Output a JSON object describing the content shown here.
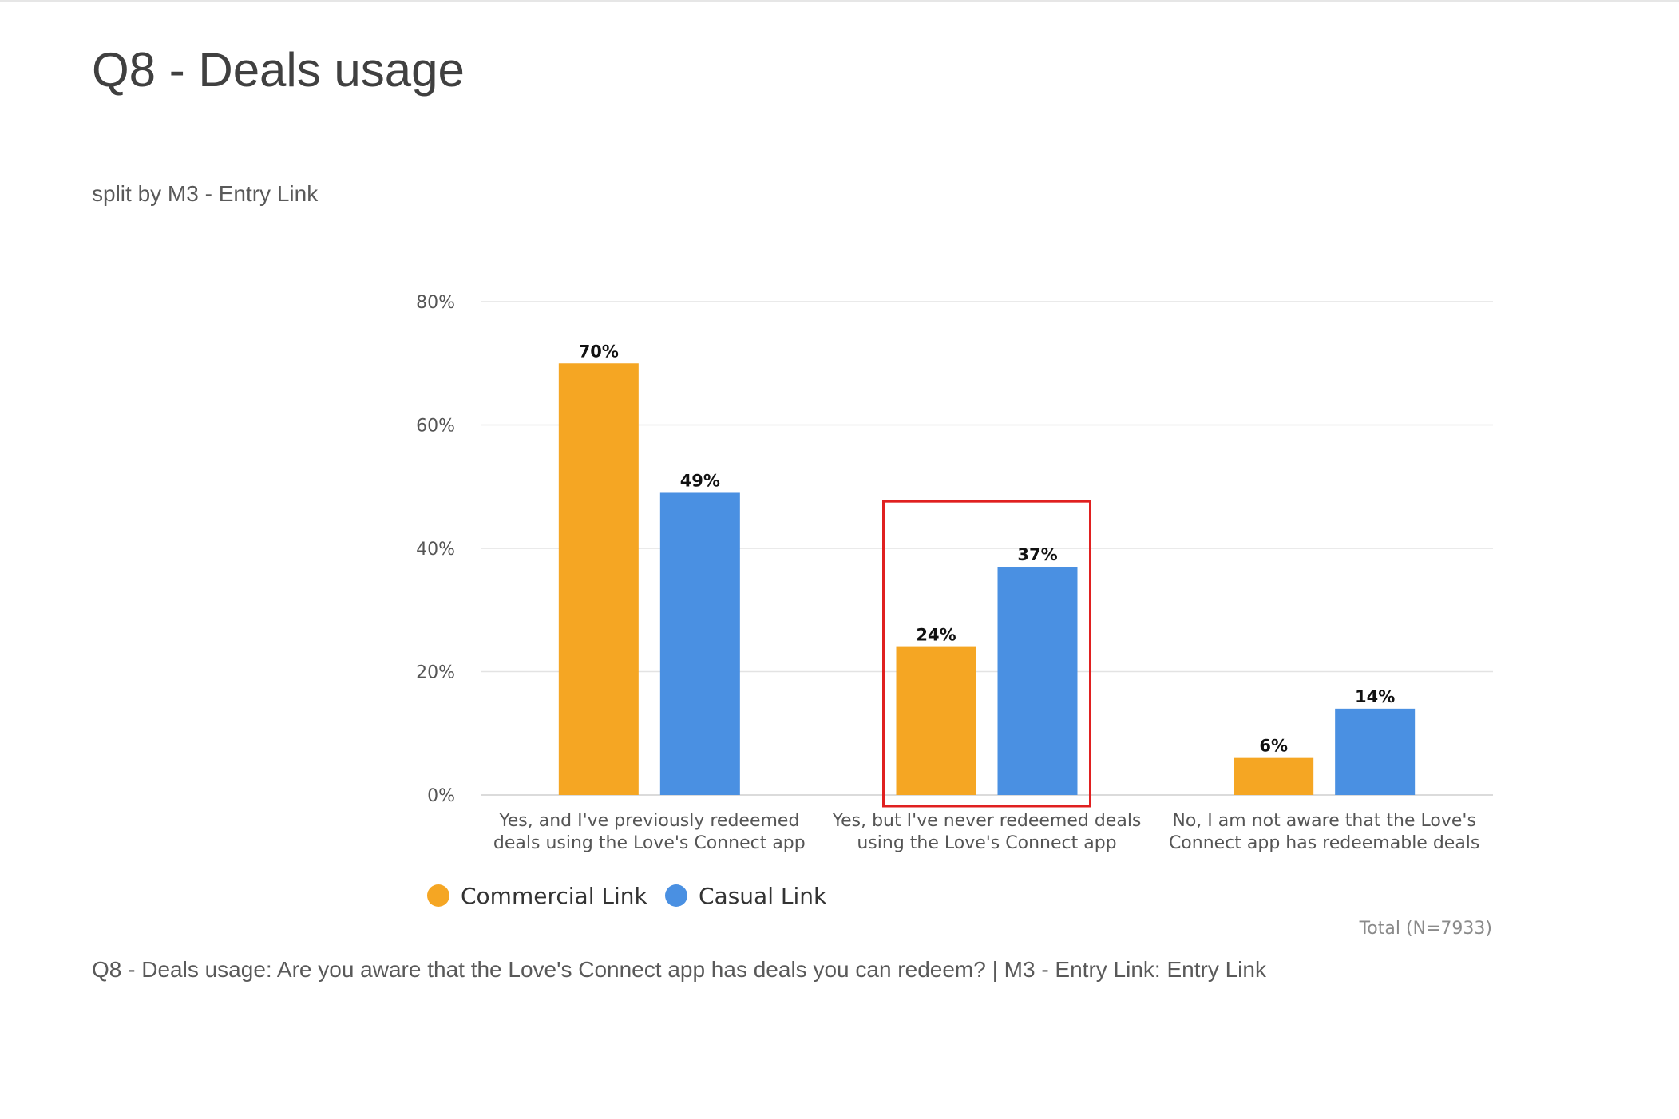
{
  "page": {
    "title": "Q8 - Deals usage",
    "subtitle": "split by M3 - Entry Link",
    "footnote": "Q8 - Deals usage: Are you aware that the Love's Connect app has deals you can redeem? | M3 - Entry Link: Entry Link"
  },
  "chart_data": {
    "type": "bar",
    "categories": [
      "Yes, and I've previously redeemed deals using the Love's Connect app",
      "Yes, but I've never redeemed deals using the Love's Connect app",
      "No, I am not aware that the Love's Connect app has redeemable deals"
    ],
    "category_lines": [
      [
        "Yes, and I've previously redeemed",
        "deals using the Love's Connect app"
      ],
      [
        "Yes, but I've never redeemed deals",
        "using the Love's Connect app"
      ],
      [
        "No, I am not aware that the Love's",
        "Connect app has redeemable deals"
      ]
    ],
    "series": [
      {
        "name": "Commercial Link",
        "color": "#F5A623",
        "values": [
          70,
          24,
          6
        ],
        "labels": [
          "70%",
          "24%",
          "6%"
        ]
      },
      {
        "name": "Casual Link",
        "color": "#4A90E2",
        "values": [
          49,
          37,
          14
        ],
        "labels": [
          "49%",
          "37%",
          "14%"
        ]
      }
    ],
    "ylim": [
      0,
      80
    ],
    "yticks": [
      0,
      20,
      40,
      60,
      80
    ],
    "ytick_labels": [
      "0%",
      "20%",
      "40%",
      "60%",
      "80%"
    ],
    "grid": true,
    "legend_position": "bottom-left",
    "highlight": {
      "category_index": 1,
      "color": "#E02020"
    },
    "total_label": "Total (N=7933)"
  }
}
